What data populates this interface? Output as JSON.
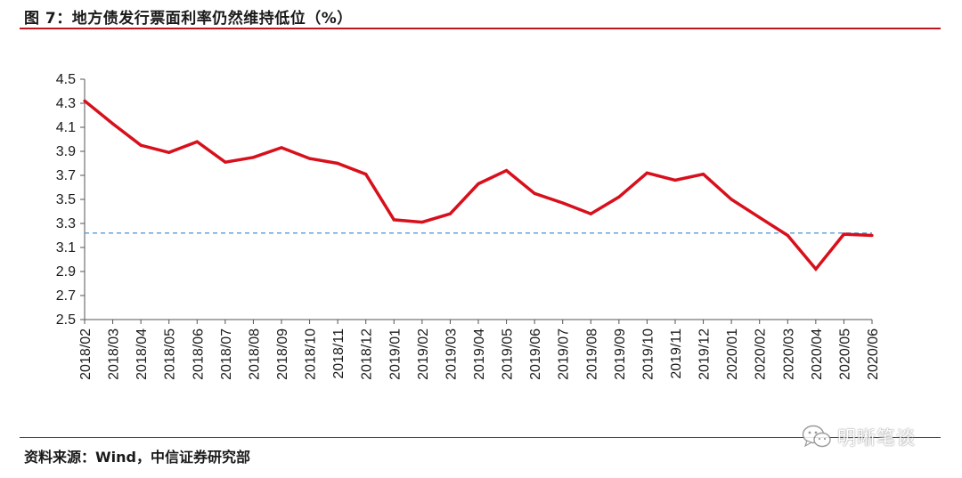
{
  "title": "图 7：地方债发行票面利率仍然维持低位（%）",
  "source": "资料来源：Wind，中信证券研究部",
  "watermark": "明晰笔谈",
  "colors": {
    "accent": "#c0161f",
    "series": "#d7101c",
    "reference": "#5b9bd5"
  },
  "chart_data": {
    "type": "line",
    "title": "地方债发行票面利率仍然维持低位（%）",
    "xlabel": "",
    "ylabel": "",
    "ylim": [
      2.5,
      4.5
    ],
    "yticks": [
      "4.5",
      "4.3",
      "4.1",
      "3.9",
      "3.7",
      "3.5",
      "3.3",
      "3.1",
      "2.9",
      "2.7",
      "2.5"
    ],
    "categories": [
      "2018/02",
      "2018/03",
      "2018/04",
      "2018/05",
      "2018/06",
      "2018/07",
      "2018/08",
      "2018/09",
      "2018/10",
      "2018/11",
      "2018/12",
      "2019/01",
      "2019/02",
      "2019/03",
      "2019/04",
      "2019/05",
      "2019/06",
      "2019/07",
      "2019/08",
      "2019/09",
      "2019/10",
      "2019/11",
      "2019/12",
      "2020/01",
      "2020/02",
      "2020/03",
      "2020/04",
      "2020/05",
      "2020/06"
    ],
    "series": [
      {
        "values": [
          4.32,
          4.13,
          3.95,
          3.89,
          3.98,
          3.81,
          3.85,
          3.93,
          3.84,
          3.8,
          3.71,
          3.33,
          3.31,
          3.38,
          3.63,
          3.74,
          3.55,
          3.47,
          3.38,
          3.52,
          3.72,
          3.66,
          3.71,
          3.5,
          3.35,
          3.2,
          2.92,
          3.21,
          3.2
        ]
      }
    ],
    "reference_line": {
      "value": 3.22,
      "style": "dashed"
    },
    "grid": false,
    "legend": "none"
  }
}
